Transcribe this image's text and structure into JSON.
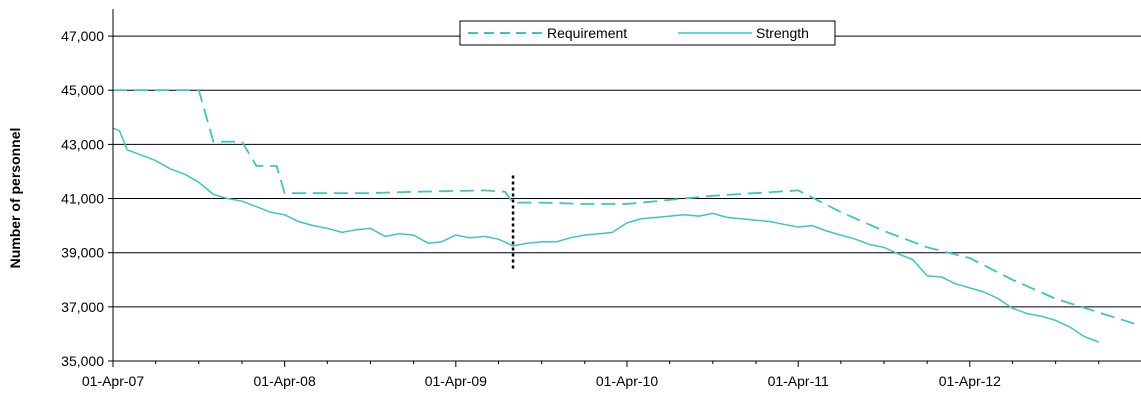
{
  "chart_data": {
    "type": "line",
    "title": "",
    "xlabel": "",
    "ylabel": "Number of personnel",
    "ylim": [
      35000,
      48000
    ],
    "y_ticks": [
      "35,000",
      "37,000",
      "39,000",
      "41,000",
      "43,000",
      "45,000",
      "47,000"
    ],
    "x_ticks": [
      "01-Apr-07",
      "01-Apr-08",
      "01-Apr-09",
      "01-Apr-10",
      "01-Apr-11",
      "01-Apr-12"
    ],
    "xlim": [
      "2007-04-01",
      "2013-04-01"
    ],
    "grid": "horizontal",
    "legend_position": "top-center",
    "marker": {
      "x": "2009-08-01",
      "y_range": [
        38400,
        41850
      ],
      "style": "dotted"
    },
    "series": [
      {
        "name": "Requirement",
        "style": "dashed",
        "color": "#3cc6c0",
        "points": [
          [
            "2007-04-01",
            45000
          ],
          [
            "2007-07-01",
            45000
          ],
          [
            "2007-10-01",
            45000
          ],
          [
            "2007-11-01",
            43100
          ],
          [
            "2008-01-01",
            43100
          ],
          [
            "2008-02-01",
            42200
          ],
          [
            "2008-03-15",
            42200
          ],
          [
            "2008-04-01",
            41200
          ],
          [
            "2008-10-01",
            41200
          ],
          [
            "2009-01-01",
            41250
          ],
          [
            "2009-06-01",
            41300
          ],
          [
            "2009-07-15",
            41250
          ],
          [
            "2009-08-01",
            40850
          ],
          [
            "2009-10-01",
            40850
          ],
          [
            "2010-01-01",
            40800
          ],
          [
            "2010-04-01",
            40800
          ],
          [
            "2010-07-01",
            40950
          ],
          [
            "2010-10-01",
            41100
          ],
          [
            "2011-04-01",
            41300
          ],
          [
            "2011-07-01",
            40500
          ],
          [
            "2011-10-01",
            39800
          ],
          [
            "2012-01-01",
            39200
          ],
          [
            "2012-04-01",
            38800
          ],
          [
            "2012-07-01",
            38000
          ],
          [
            "2012-10-01",
            37300
          ],
          [
            "2013-04-01",
            36300
          ]
        ]
      },
      {
        "name": "Strength",
        "style": "solid",
        "color": "#3cc6c0",
        "points": [
          [
            "2007-04-01",
            43600
          ],
          [
            "2007-04-15",
            43500
          ],
          [
            "2007-05-01",
            42800
          ],
          [
            "2007-06-01",
            42600
          ],
          [
            "2007-07-01",
            42400
          ],
          [
            "2007-08-01",
            42100
          ],
          [
            "2007-09-01",
            41900
          ],
          [
            "2007-10-01",
            41600
          ],
          [
            "2007-11-01",
            41150
          ],
          [
            "2007-12-01",
            41000
          ],
          [
            "2008-01-01",
            40900
          ],
          [
            "2008-02-01",
            40700
          ],
          [
            "2008-03-01",
            40500
          ],
          [
            "2008-04-01",
            40400
          ],
          [
            "2008-05-01",
            40150
          ],
          [
            "2008-06-01",
            40000
          ],
          [
            "2008-07-01",
            39900
          ],
          [
            "2008-08-01",
            39750
          ],
          [
            "2008-09-01",
            39850
          ],
          [
            "2008-10-01",
            39900
          ],
          [
            "2008-11-01",
            39600
          ],
          [
            "2008-12-01",
            39700
          ],
          [
            "2009-01-01",
            39650
          ],
          [
            "2009-02-01",
            39350
          ],
          [
            "2009-03-01",
            39400
          ],
          [
            "2009-04-01",
            39650
          ],
          [
            "2009-05-01",
            39550
          ],
          [
            "2009-06-01",
            39600
          ],
          [
            "2009-07-01",
            39500
          ],
          [
            "2009-08-01",
            39250
          ],
          [
            "2009-09-01",
            39350
          ],
          [
            "2009-10-01",
            39400
          ],
          [
            "2009-11-01",
            39400
          ],
          [
            "2009-12-01",
            39550
          ],
          [
            "2010-01-01",
            39650
          ],
          [
            "2010-02-01",
            39700
          ],
          [
            "2010-03-01",
            39750
          ],
          [
            "2010-04-01",
            40100
          ],
          [
            "2010-05-01",
            40250
          ],
          [
            "2010-06-01",
            40300
          ],
          [
            "2010-07-01",
            40350
          ],
          [
            "2010-08-01",
            40400
          ],
          [
            "2010-09-01",
            40350
          ],
          [
            "2010-10-01",
            40450
          ],
          [
            "2010-11-01",
            40300
          ],
          [
            "2010-12-01",
            40250
          ],
          [
            "2011-01-01",
            40200
          ],
          [
            "2011-02-01",
            40150
          ],
          [
            "2011-03-01",
            40050
          ],
          [
            "2011-04-01",
            39950
          ],
          [
            "2011-05-01",
            40000
          ],
          [
            "2011-06-01",
            39800
          ],
          [
            "2011-07-01",
            39650
          ],
          [
            "2011-08-01",
            39500
          ],
          [
            "2011-09-01",
            39300
          ],
          [
            "2011-10-01",
            39200
          ],
          [
            "2011-11-01",
            38950
          ],
          [
            "2011-12-01",
            38750
          ],
          [
            "2012-01-01",
            38150
          ],
          [
            "2012-02-01",
            38100
          ],
          [
            "2012-03-01",
            37850
          ],
          [
            "2012-04-01",
            37700
          ],
          [
            "2012-05-01",
            37550
          ],
          [
            "2012-06-01",
            37300
          ],
          [
            "2012-07-01",
            36950
          ],
          [
            "2012-08-01",
            36750
          ],
          [
            "2012-09-01",
            36650
          ],
          [
            "2012-10-01",
            36500
          ],
          [
            "2012-11-01",
            36250
          ],
          [
            "2012-12-01",
            35900
          ],
          [
            "2013-01-01",
            35700
          ]
        ]
      }
    ]
  }
}
